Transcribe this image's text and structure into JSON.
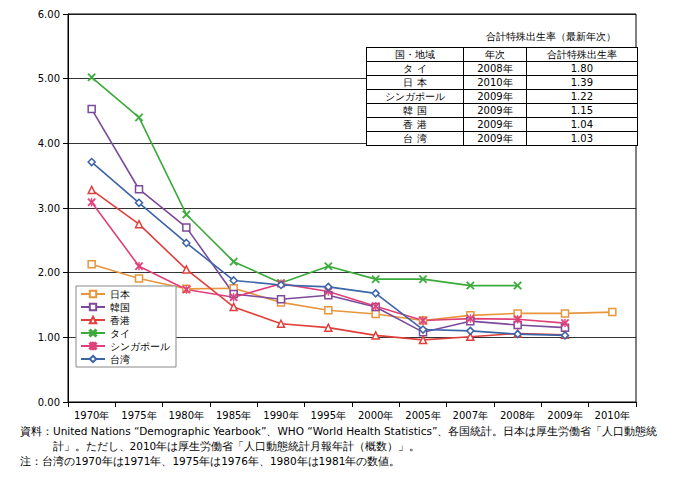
{
  "chart_data": {
    "type": "line",
    "categories": [
      "1970年",
      "1975年",
      "1980年",
      "1985年",
      "1990年",
      "1995年",
      "2000年",
      "2005年",
      "2007年",
      "2008年",
      "2009年",
      "2010年"
    ],
    "series": [
      {
        "name": "日本",
        "color": "#e8963c",
        "marker": "square",
        "values": [
          2.13,
          1.91,
          1.75,
          1.76,
          1.54,
          1.42,
          1.36,
          1.26,
          1.34,
          1.37,
          1.37,
          1.39
        ]
      },
      {
        "name": "韓国",
        "color": "#7b4a9a",
        "marker": "square",
        "values": [
          4.53,
          3.29,
          2.7,
          1.67,
          1.59,
          1.65,
          1.47,
          1.08,
          1.25,
          1.19,
          1.15,
          null
        ]
      },
      {
        "name": "香港",
        "color": "#e0403c",
        "marker": "triangle",
        "values": [
          3.28,
          2.75,
          2.05,
          1.47,
          1.21,
          1.15,
          1.03,
          0.96,
          1.01,
          1.06,
          1.04,
          null
        ]
      },
      {
        "name": "タイ",
        "color": "#3aaa3a",
        "marker": "x",
        "values": [
          5.02,
          4.4,
          2.9,
          2.17,
          1.84,
          2.1,
          1.9,
          1.9,
          1.8,
          1.8,
          null,
          null
        ]
      },
      {
        "name": "シンガポール",
        "color": "#e0407a",
        "marker": "asterisk",
        "values": [
          3.09,
          2.1,
          1.74,
          1.62,
          1.83,
          1.71,
          1.48,
          1.26,
          1.29,
          1.28,
          1.22,
          null
        ]
      },
      {
        "name": "台湾",
        "color": "#3c64a8",
        "marker": "diamond",
        "values": [
          3.71,
          3.08,
          2.46,
          1.88,
          1.81,
          1.78,
          1.68,
          1.12,
          1.1,
          1.05,
          1.03,
          null
        ]
      }
    ],
    "ylim": [
      0,
      6
    ],
    "yticks": [
      {
        "value": 0,
        "label": "0.00"
      },
      {
        "value": 1,
        "label": "1.00"
      },
      {
        "value": 2,
        "label": "2.00"
      },
      {
        "value": 3,
        "label": "3.00"
      },
      {
        "value": 4,
        "label": "4.00"
      },
      {
        "value": 5,
        "label": "5.00"
      },
      {
        "value": 6,
        "label": "6.00"
      }
    ],
    "grid": true,
    "legend": "lower left"
  },
  "inset_table": {
    "title": "合計特殊出生率（最新年次）",
    "header": [
      "国・地域",
      "年次",
      "合計特殊出生率"
    ],
    "rows": [
      [
        "タ イ",
        "2008年",
        "1.80"
      ],
      [
        "日 本",
        "2010年",
        "1.39"
      ],
      [
        "シンガポール",
        "2009年",
        "1.22"
      ],
      [
        "韓 国",
        "2009年",
        "1.15"
      ],
      [
        "香 港",
        "2009年",
        "1.04"
      ],
      [
        "台 湾",
        "2009年",
        "1.03"
      ]
    ]
  },
  "notes": [
    "資料：United Nations “Demographic Yearbook”、WHO “World Health Statistics”、各国統計。日本は厚生労働省「人口動態統計」。ただし、2010年は厚生労働省「人口動態統計月報年計（概数）」。",
    "注：台湾の1970年は1971年、1975年は1976年、1980年は1981年の数値。"
  ]
}
